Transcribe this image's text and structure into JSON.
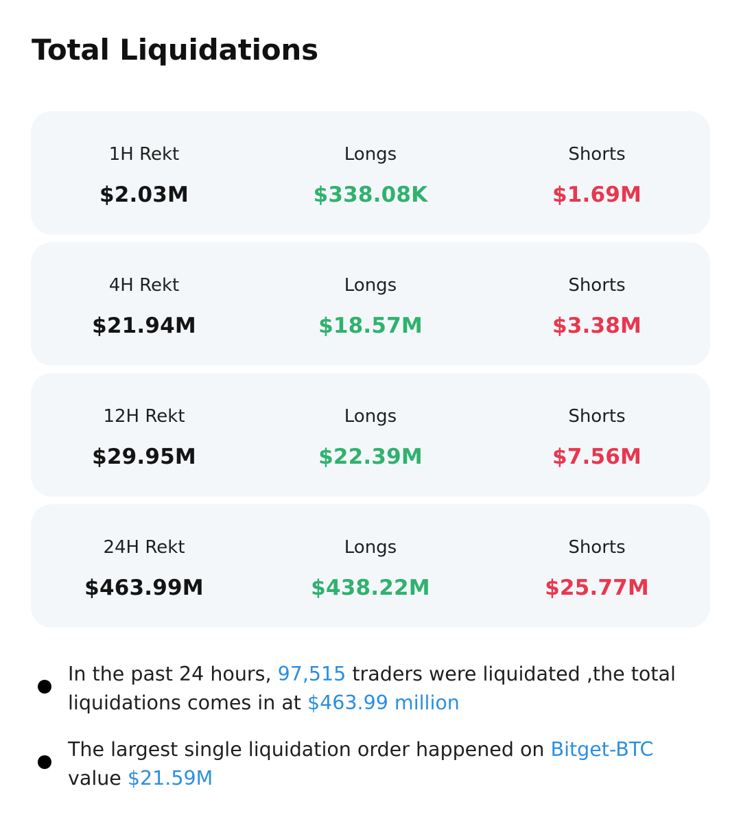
{
  "title": "Total Liquidations",
  "rows": [
    {
      "period_label": "1H Rekt",
      "total": "$2.03M",
      "longs_label": "Longs",
      "longs": "$338.08K",
      "shorts_label": "Shorts",
      "shorts": "$1.69M"
    },
    {
      "period_label": "4H Rekt",
      "total": "$21.94M",
      "longs_label": "Longs",
      "longs": "$18.57M",
      "shorts_label": "Shorts",
      "shorts": "$3.38M"
    },
    {
      "period_label": "12H Rekt",
      "total": "$29.95M",
      "longs_label": "Longs",
      "longs": "$22.39M",
      "shorts_label": "Shorts",
      "shorts": "$7.56M"
    },
    {
      "period_label": "24H Rekt",
      "total": "$463.99M",
      "longs_label": "Longs",
      "longs": "$438.22M",
      "shorts_label": "Shorts",
      "shorts": "$25.77M"
    }
  ],
  "notes": {
    "first": {
      "text_1": "In the past 24 hours, ",
      "traders_count": "97,515",
      "text_2": " traders were liquidated ,the total liquidations comes in at ",
      "total_amount": "$463.99 million"
    },
    "second": {
      "text_1": "The largest single liquidation order happened on ",
      "market": "Bitget-BTC",
      "text_2": " value ",
      "value": "$21.59M"
    }
  },
  "colors": {
    "longs": "#2fb26e",
    "shorts": "#e8374f",
    "highlight": "#2b8fe0",
    "card_background": "#f4f7fa"
  }
}
